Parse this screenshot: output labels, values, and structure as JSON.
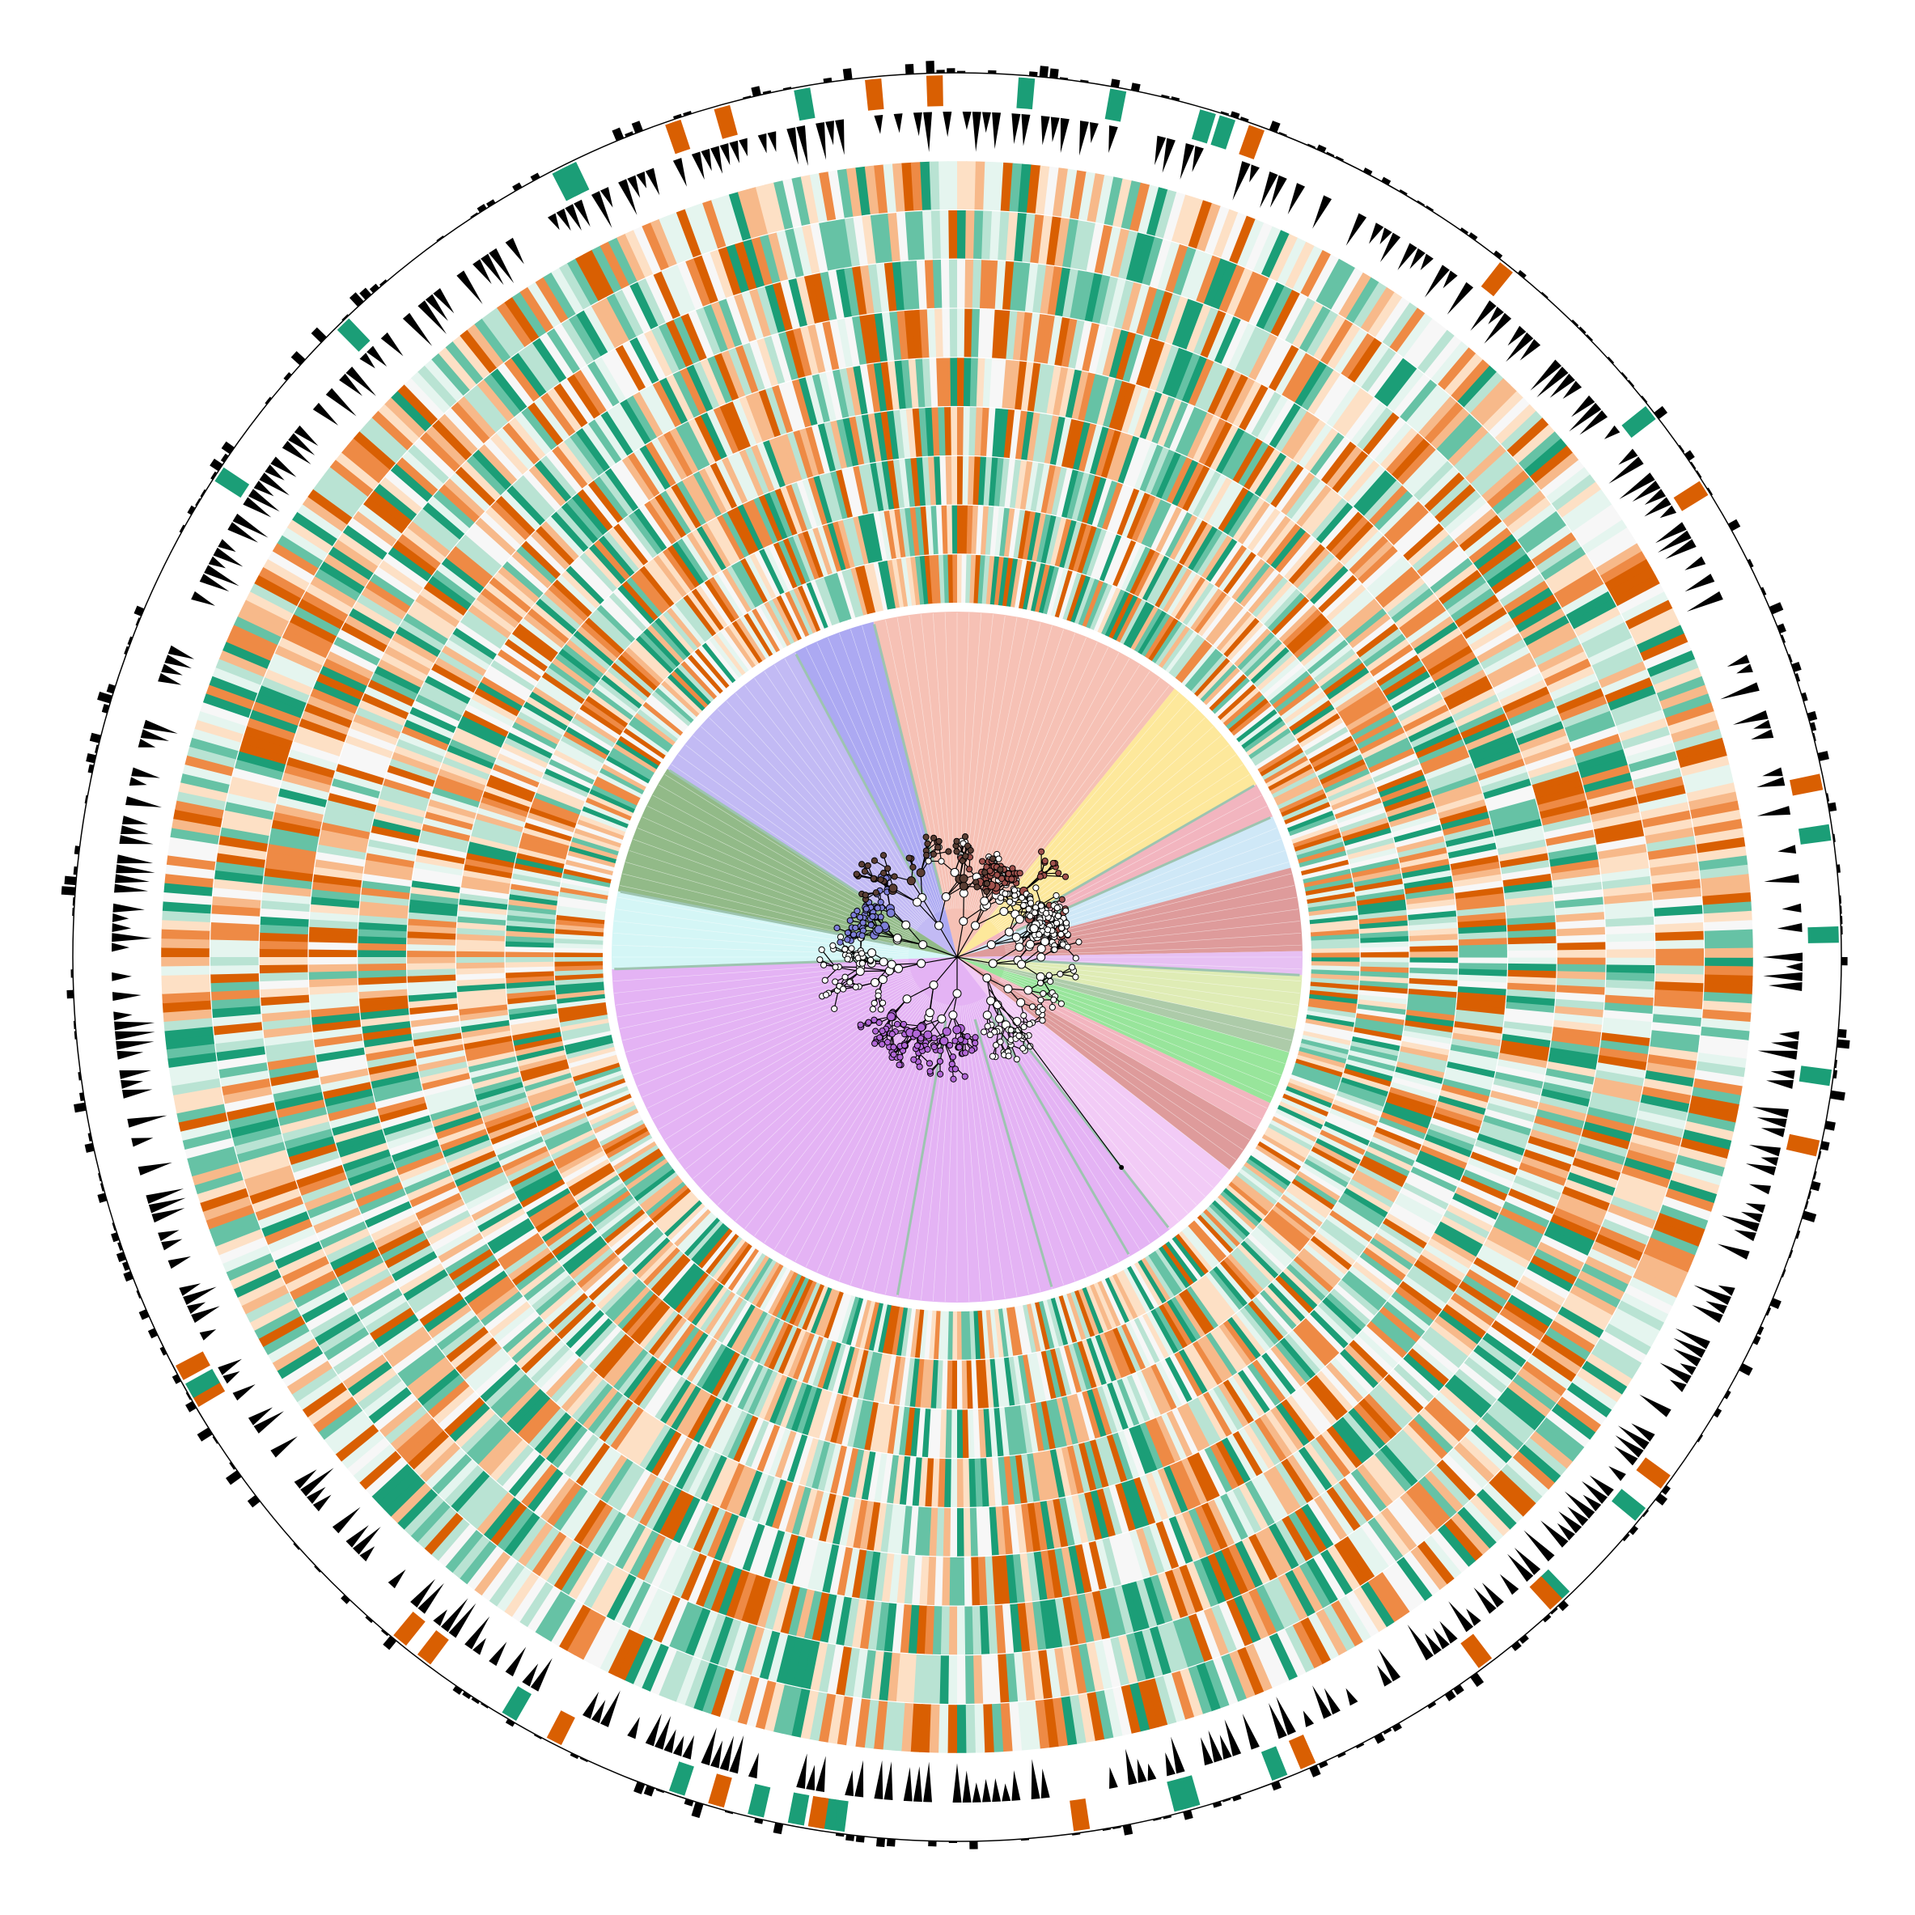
{
  "figure": {
    "type": "circular-phylogenetic-tree",
    "description_visible_text": "",
    "background": "#ffffff"
  },
  "clades": [
    {
      "name": "clade-salmon",
      "color": "#f4b6a8",
      "start_deg": -104,
      "end_deg": -51
    },
    {
      "name": "clade-yellow",
      "color": "#fde48a",
      "start_deg": -51,
      "end_deg": -30
    },
    {
      "name": "clade-pink-1",
      "color": "#f0a8b4",
      "start_deg": -30,
      "end_deg": -24
    },
    {
      "name": "clade-lightblue",
      "color": "#c7e4f6",
      "start_deg": -24,
      "end_deg": -15
    },
    {
      "name": "clade-rosered",
      "color": "#d88a8a",
      "start_deg": -15,
      "end_deg": -1
    },
    {
      "name": "clade-lilac-1",
      "color": "#e3b5f1",
      "start_deg": -1,
      "end_deg": 3
    },
    {
      "name": "clade-lightolive",
      "color": "#d9e9a8",
      "start_deg": 3,
      "end_deg": 12
    },
    {
      "name": "clade-sage",
      "color": "#9fc29a",
      "start_deg": 12,
      "end_deg": 16
    },
    {
      "name": "clade-green",
      "color": "#86e08a",
      "start_deg": 16,
      "end_deg": 25
    },
    {
      "name": "clade-pink-2",
      "color": "#f0a8b4",
      "start_deg": 25,
      "end_deg": 30
    },
    {
      "name": "clade-rosered-2",
      "color": "#d88a8a",
      "start_deg": 30,
      "end_deg": 38
    },
    {
      "name": "clade-lilac-2",
      "color": "#f0c2f4",
      "start_deg": 38,
      "end_deg": 52
    },
    {
      "name": "clade-purple",
      "color": "#dfa6f2",
      "start_deg": 52,
      "end_deg": 178
    },
    {
      "name": "clade-cyan",
      "color": "#cdf4f4",
      "start_deg": 178,
      "end_deg": 191
    },
    {
      "name": "clade-darkgreen",
      "color": "#7fae73",
      "start_deg": 191,
      "end_deg": 213
    },
    {
      "name": "clade-lavender",
      "color": "#b7aef2",
      "start_deg": 213,
      "end_deg": 242
    },
    {
      "name": "clade-blue",
      "color": "#9d9af0",
      "start_deg": 242,
      "end_deg": 256
    }
  ],
  "palette": {
    "heat_green_dark": "#1b9e77",
    "heat_green_mid": "#66c2a5",
    "heat_green_light": "#b9e3d3",
    "heat_green_pale": "#e5f5ef",
    "heat_white": "#f7f7f7",
    "heat_orange_pale": "#fde0c5",
    "heat_orange_light": "#f7b98a",
    "heat_orange_mid": "#ee8a45",
    "heat_orange_dark": "#d95f02",
    "marker_black": "#000000",
    "tree_branch": "#000000",
    "leaf_line": "#9dc4b0"
  },
  "rings": {
    "heatmap_count": 9,
    "triangle_ring": "black-triangles",
    "outer_bar_ring": "green-orange-bars",
    "outermost_ring": "black-bars"
  }
}
